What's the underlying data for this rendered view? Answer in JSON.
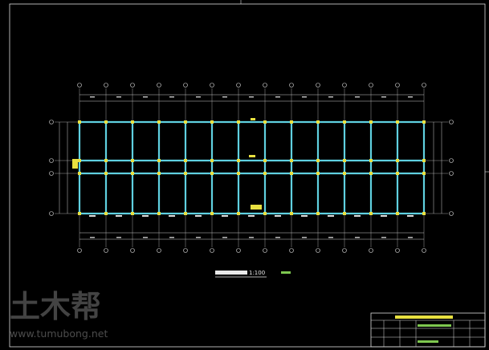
{
  "drawing": {
    "scale": "1:100"
  },
  "watermark": {
    "logo": "土木帮",
    "url": "www.tumubong.net"
  }
}
